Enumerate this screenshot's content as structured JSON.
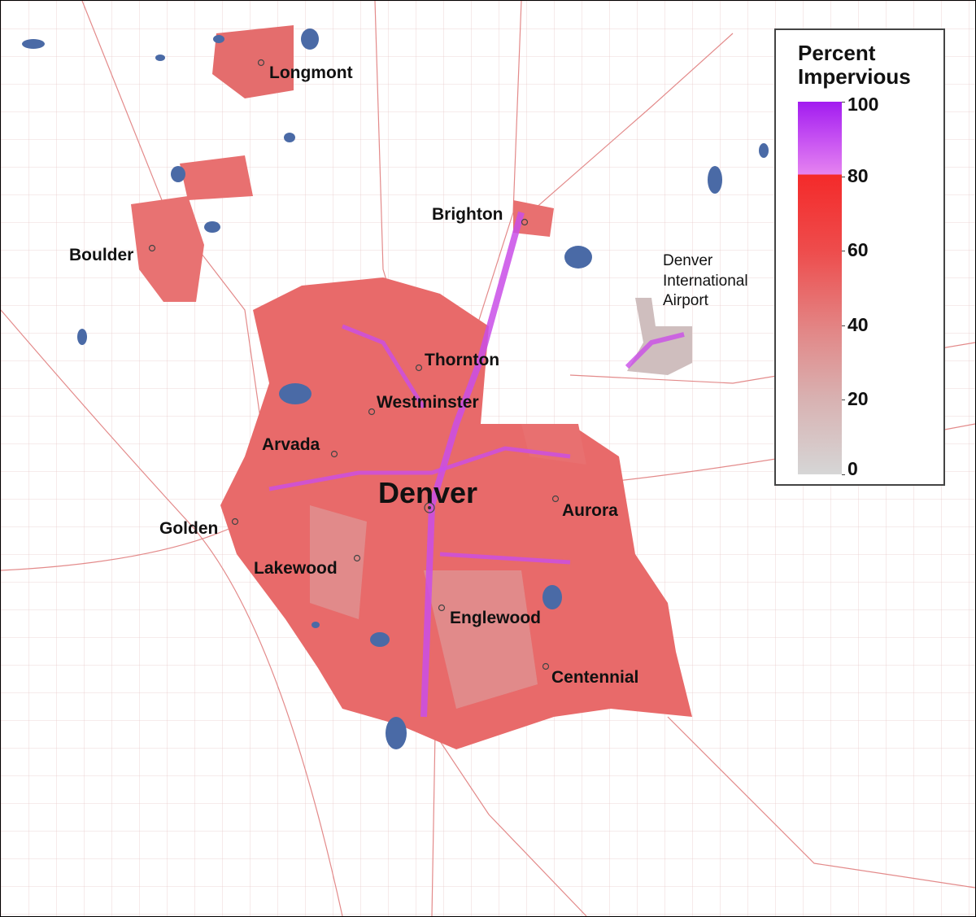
{
  "places": [
    "Longmont",
    "Brighton",
    "Boulder",
    "Denver International Airport",
    "Thornton",
    "Westminster",
    "Arvada",
    "Denver",
    "Aurora",
    "Golden",
    "Lakewood",
    "Englewood",
    "Centennial"
  ],
  "legend": {
    "title": "Percent Impervious",
    "range": [
      0,
      100
    ],
    "ticks": [
      0,
      20,
      40,
      60,
      80,
      100
    ]
  }
}
